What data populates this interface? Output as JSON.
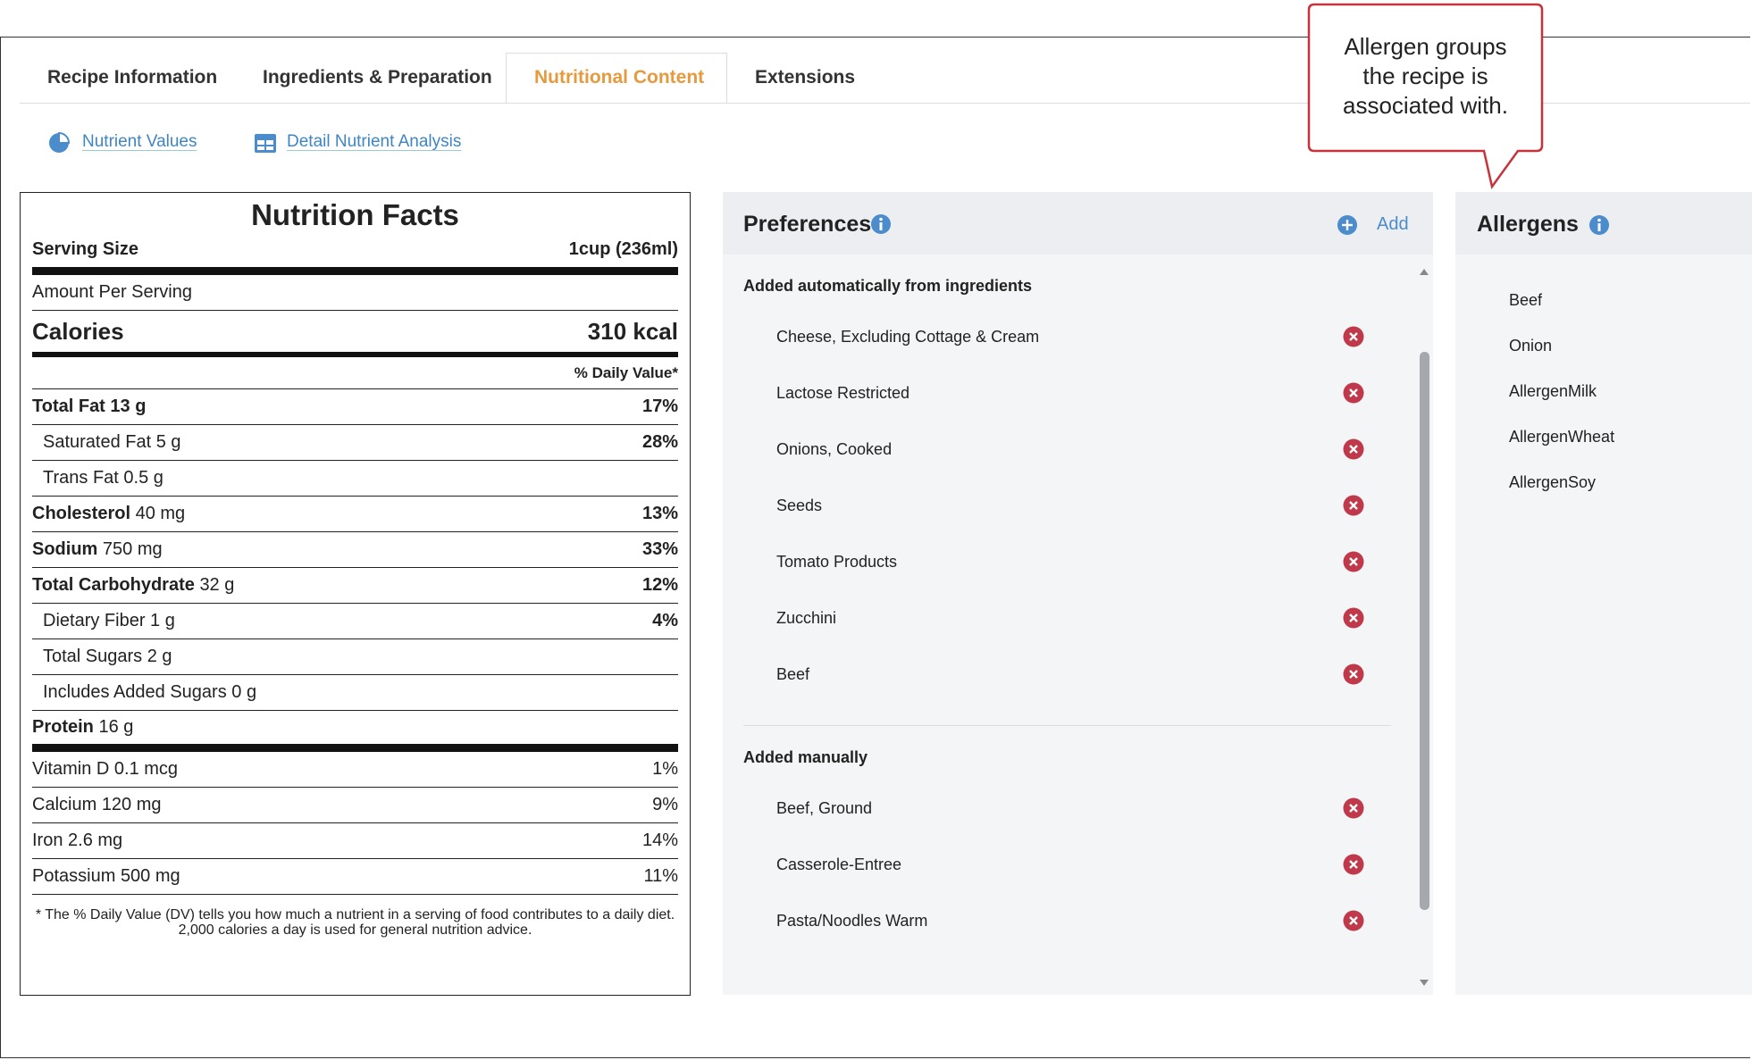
{
  "tabs": [
    "Recipe Information",
    "Ingredients & Preparation",
    "Nutritional Content",
    "Extensions"
  ],
  "subnav": [
    "Nutrient Values",
    "Detail Nutrient Analysis"
  ],
  "nutrition_facts": {
    "title": "Nutrition Facts",
    "serving_size": {
      "label": "Serving Size",
      "value": "1cup (236ml)"
    },
    "amount_per_serving": "Amount Per Serving",
    "calories": {
      "label": "Calories",
      "value": "310 kcal"
    },
    "daily_value_header": "% Daily Value*",
    "nutrients": [
      {
        "name": "Total Fat",
        "amount": "13 g",
        "daily_value": "17%"
      },
      {
        "name": "Saturated Fat",
        "amount": "5 g",
        "daily_value": "28%"
      },
      {
        "name": "Trans Fat",
        "amount": "0.5 g"
      },
      {
        "name": "Cholesterol",
        "amount": "40 mg",
        "daily_value": "13%"
      },
      {
        "name": "Sodium",
        "amount": "750 mg",
        "daily_value": "33%"
      },
      {
        "name": "Total Carbohydrate",
        "amount": "32 g",
        "daily_value": "12%"
      },
      {
        "name": "Dietary Fiber",
        "amount": "1 g",
        "daily_value": "4%"
      },
      {
        "name": "Total Sugars",
        "amount": "2 g"
      },
      {
        "name": "Includes Added Sugars",
        "amount": "0 g"
      },
      {
        "name": "Protein",
        "amount": "16 g"
      }
    ],
    "vitamins": [
      {
        "name": "Vitamin D",
        "amount": "0.1 mcg",
        "daily_value": "1%"
      },
      {
        "name": "Calcium",
        "amount": "120 mg",
        "daily_value": "9%"
      },
      {
        "name": "Iron",
        "amount": "2.6 mg",
        "daily_value": "14%"
      },
      {
        "name": "Potassium",
        "amount": "500 mg",
        "daily_value": "11%"
      }
    ],
    "footnote": "* The % Daily Value (DV) tells you how much a nutrient in a serving of food contributes to a daily diet. 2,000 calories a day is used for general nutrition advice."
  },
  "preferences": {
    "title": "Preferences",
    "add": "Add",
    "sections": [
      {
        "heading": "Added automatically from ingredients",
        "items": [
          "Cheese, Excluding Cottage & Cream",
          "Lactose Restricted",
          "Onions, Cooked",
          "Seeds",
          "Tomato Products",
          "Zucchini",
          "Beef"
        ]
      },
      {
        "heading": "Added manually",
        "items": [
          "Beef, Ground",
          "Casserole-Entree",
          "Pasta/Noodles Warm"
        ]
      }
    ]
  },
  "allergens": {
    "title": "Allergens",
    "items": [
      "Beef",
      "Onion",
      "AllergenMilk",
      "AllergenWheat",
      "AllergenSoy"
    ]
  },
  "callout": "Allergen groups the recipe is associated with."
}
